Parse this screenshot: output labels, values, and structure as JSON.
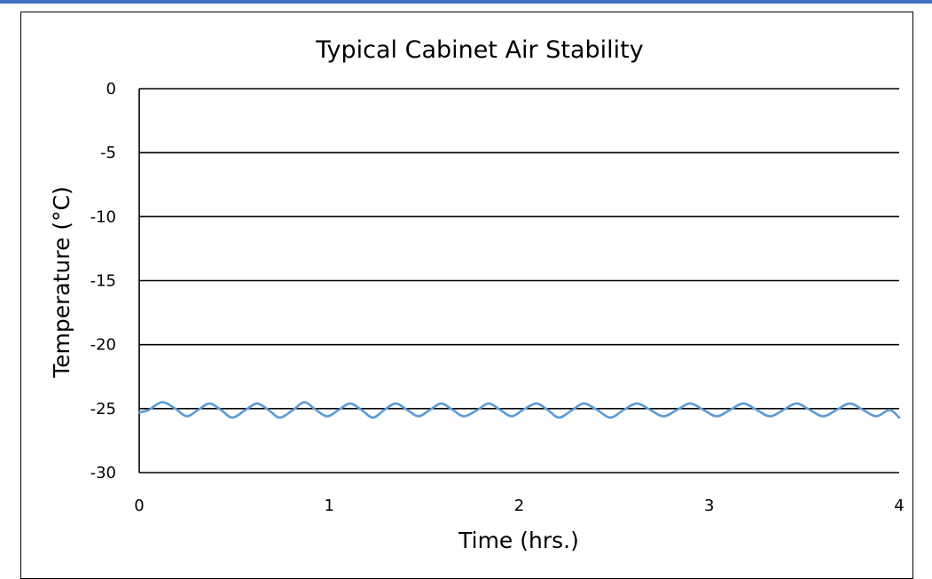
{
  "chart_data": {
    "type": "line",
    "title": "Typical Cabinet Air Stability",
    "xlabel": "Time (hrs.)",
    "ylabel": "Temperature (°C)",
    "xlim": [
      0,
      4
    ],
    "ylim": [
      -30,
      0
    ],
    "x_ticks": [
      "0",
      "1",
      "2",
      "3",
      "4"
    ],
    "y_ticks": [
      "0",
      "-5",
      "-10",
      "-15",
      "-20",
      "-25",
      "-30"
    ],
    "grid": true,
    "legend": "none",
    "series": [
      {
        "color": "#5b9bd5",
        "x": [
          0.0,
          0.05,
          0.12,
          0.19,
          0.25,
          0.31,
          0.37,
          0.43,
          0.49,
          0.56,
          0.62,
          0.68,
          0.74,
          0.81,
          0.87,
          0.93,
          0.99,
          1.05,
          1.11,
          1.17,
          1.23,
          1.29,
          1.35,
          1.41,
          1.47,
          1.53,
          1.59,
          1.65,
          1.71,
          1.78,
          1.84,
          1.9,
          1.96,
          2.02,
          2.09,
          2.15,
          2.21,
          2.28,
          2.34,
          2.41,
          2.48,
          2.55,
          2.62,
          2.69,
          2.76,
          2.83,
          2.9,
          2.97,
          3.04,
          3.11,
          3.18,
          3.25,
          3.32,
          3.39,
          3.46,
          3.53,
          3.6,
          3.67,
          3.74,
          3.81,
          3.88,
          3.95,
          4.0
        ],
        "y": [
          -25.3,
          -25.1,
          -24.5,
          -25.0,
          -25.6,
          -25.1,
          -24.6,
          -25.1,
          -25.7,
          -25.1,
          -24.6,
          -25.1,
          -25.7,
          -25.1,
          -24.5,
          -25.1,
          -25.6,
          -25.1,
          -24.6,
          -25.1,
          -25.7,
          -25.1,
          -24.6,
          -25.1,
          -25.6,
          -25.1,
          -24.6,
          -25.1,
          -25.6,
          -25.1,
          -24.6,
          -25.1,
          -25.6,
          -25.1,
          -24.6,
          -25.1,
          -25.7,
          -25.1,
          -24.6,
          -25.1,
          -25.7,
          -25.1,
          -24.6,
          -25.1,
          -25.6,
          -25.1,
          -24.6,
          -25.1,
          -25.6,
          -25.1,
          -24.6,
          -25.1,
          -25.6,
          -25.1,
          -24.6,
          -25.1,
          -25.6,
          -25.1,
          -24.6,
          -25.1,
          -25.6,
          -25.1,
          -25.7
        ]
      }
    ]
  }
}
